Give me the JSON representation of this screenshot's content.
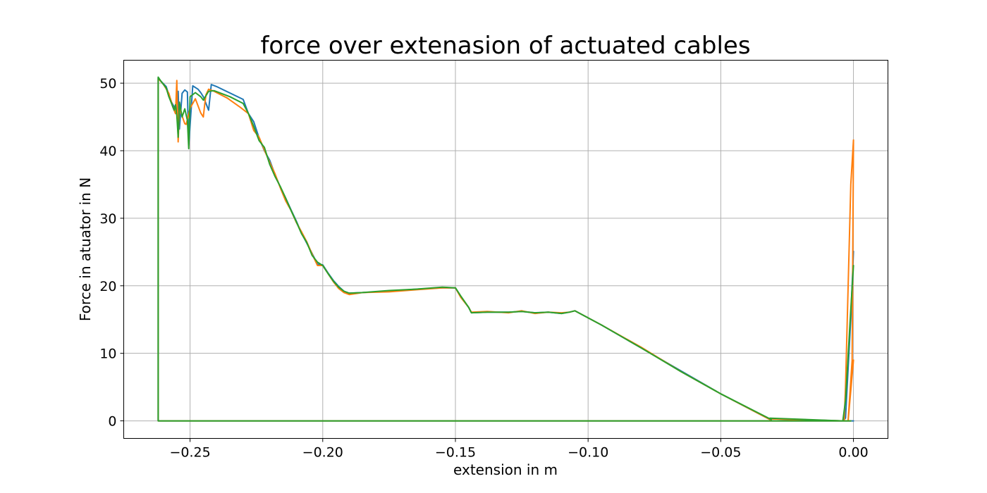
{
  "chart_data": {
    "type": "line",
    "title": "force over extenasion of actuated cables",
    "xlabel": "extension in m",
    "ylabel": "Force in atuator in N",
    "xlim": [
      -0.275,
      0.013
    ],
    "ylim": [
      -2.6,
      53.4
    ],
    "grid": true,
    "xticks": [
      -0.25,
      -0.2,
      -0.15,
      -0.1,
      -0.05,
      0.0
    ],
    "xtick_labels": [
      "−0.25",
      "−0.20",
      "−0.15",
      "−0.10",
      "−0.05",
      "0.00"
    ],
    "yticks": [
      0,
      10,
      20,
      30,
      40,
      50
    ],
    "ytick_labels": [
      "0",
      "10",
      "20",
      "30",
      "40",
      "50"
    ],
    "series": [
      {
        "color": "#1f77b4",
        "x": [
          0.0,
          -0.262,
          -0.262,
          -0.261,
          -0.259,
          -0.258,
          -0.257,
          -0.256,
          -0.255,
          -0.2545,
          -0.254,
          -0.253,
          -0.252,
          -0.251,
          -0.2505,
          -0.249,
          -0.247,
          -0.246,
          -0.245,
          -0.243,
          -0.242,
          -0.24,
          -0.23,
          -0.228,
          -0.226,
          -0.224,
          -0.222,
          -0.22,
          -0.218,
          -0.216,
          -0.214,
          -0.212,
          -0.21,
          -0.208,
          -0.206,
          -0.204,
          -0.202,
          -0.2,
          -0.198,
          -0.196,
          -0.194,
          -0.192,
          -0.19,
          -0.185,
          -0.175,
          -0.165,
          -0.155,
          -0.15,
          -0.148,
          -0.145,
          -0.144,
          -0.138,
          -0.13,
          -0.125,
          -0.12,
          -0.115,
          -0.11,
          -0.107,
          -0.105,
          -0.095,
          -0.08,
          -0.065,
          -0.05,
          -0.031,
          -0.0315,
          -0.004,
          -0.003,
          -0.001,
          0.0
        ],
        "y": [
          0,
          0,
          50.8,
          50.3,
          49.5,
          48.3,
          47.2,
          46.5,
          45.8,
          48.8,
          43.2,
          48.5,
          49.0,
          48.7,
          40.8,
          49.6,
          49.1,
          48.6,
          48.0,
          46.0,
          49.8,
          49.5,
          47.6,
          45.5,
          44.3,
          41.9,
          40.0,
          38.6,
          36.5,
          34.6,
          33.0,
          31.3,
          29.6,
          27.8,
          26.3,
          24.8,
          23.2,
          23.1,
          21.9,
          20.8,
          19.9,
          19.2,
          18.9,
          19.0,
          19.2,
          19.5,
          19.7,
          19.7,
          18.4,
          16.8,
          16.0,
          16.1,
          16.1,
          16.2,
          16.0,
          16.1,
          15.9,
          16.1,
          16.3,
          14.2,
          10.8,
          7.4,
          4.0,
          0.1,
          0.3,
          0.0,
          0.4,
          15.2,
          25.1
        ]
      },
      {
        "color": "#ff7f0e",
        "x": [
          -0.001,
          -0.262,
          -0.262,
          -0.26,
          -0.258,
          -0.2565,
          -0.2555,
          -0.255,
          -0.2545,
          -0.254,
          -0.252,
          -0.2515,
          -0.251,
          -0.25,
          -0.248,
          -0.246,
          -0.245,
          -0.2445,
          -0.244,
          -0.243,
          -0.241,
          -0.236,
          -0.231,
          -0.228,
          -0.226,
          -0.224,
          -0.222,
          -0.22,
          -0.218,
          -0.216,
          -0.214,
          -0.212,
          -0.21,
          -0.208,
          -0.206,
          -0.204,
          -0.202,
          -0.2,
          -0.198,
          -0.196,
          -0.194,
          -0.192,
          -0.19,
          -0.185,
          -0.175,
          -0.165,
          -0.155,
          -0.15,
          -0.148,
          -0.145,
          -0.144,
          -0.138,
          -0.13,
          -0.125,
          -0.12,
          -0.115,
          -0.11,
          -0.107,
          -0.105,
          -0.095,
          -0.08,
          -0.065,
          -0.05,
          -0.031,
          -0.0315,
          -0.0035,
          -0.003,
          -0.001,
          0.0,
          -0.0005,
          -0.002,
          0.0
        ],
        "y": [
          0,
          0,
          50.7,
          49.8,
          48.5,
          46.5,
          45.5,
          50.4,
          41.3,
          46.3,
          44.0,
          43.9,
          44.6,
          46.3,
          47.7,
          45.6,
          45.0,
          46.8,
          48.3,
          49.1,
          48.8,
          47.8,
          46.4,
          45.5,
          43.0,
          42.0,
          40.1,
          38.3,
          36.6,
          34.5,
          32.6,
          31.2,
          29.4,
          28.0,
          26.5,
          24.7,
          23.0,
          23.0,
          21.8,
          20.6,
          19.6,
          19.0,
          18.7,
          19.0,
          19.1,
          19.4,
          19.7,
          19.7,
          18.3,
          16.8,
          16.1,
          16.2,
          16.0,
          16.3,
          15.9,
          16.1,
          16.0,
          16.1,
          16.3,
          14.2,
          10.9,
          7.3,
          4.0,
          0.1,
          0.3,
          0.0,
          5.0,
          35.0,
          41.6,
          9.0,
          0.0,
          9.0
        ]
      },
      {
        "color": "#2ca02c",
        "x": [
          -0.001,
          -0.262,
          -0.262,
          -0.261,
          -0.259,
          -0.258,
          -0.257,
          -0.2565,
          -0.256,
          -0.2555,
          -0.255,
          -0.2545,
          -0.254,
          -0.253,
          -0.252,
          -0.251,
          -0.2505,
          -0.25,
          -0.248,
          -0.246,
          -0.245,
          -0.243,
          -0.241,
          -0.235,
          -0.23,
          -0.228,
          -0.226,
          -0.224,
          -0.222,
          -0.22,
          -0.218,
          -0.216,
          -0.214,
          -0.212,
          -0.21,
          -0.208,
          -0.206,
          -0.204,
          -0.202,
          -0.2,
          -0.198,
          -0.196,
          -0.194,
          -0.192,
          -0.19,
          -0.185,
          -0.175,
          -0.165,
          -0.155,
          -0.15,
          -0.148,
          -0.145,
          -0.144,
          -0.138,
          -0.13,
          -0.125,
          -0.12,
          -0.115,
          -0.11,
          -0.107,
          -0.105,
          -0.095,
          -0.08,
          -0.065,
          -0.05,
          -0.031,
          -0.0315,
          -0.004,
          -0.003,
          -0.001,
          0.0
        ],
        "y": [
          0,
          0,
          50.9,
          50.3,
          49.3,
          48.0,
          47.0,
          46.5,
          46.0,
          46.8,
          45.2,
          42.0,
          47.2,
          45.0,
          46.2,
          44.5,
          40.3,
          48.0,
          48.6,
          48.0,
          47.5,
          48.8,
          48.9,
          48.0,
          47.0,
          45.5,
          43.6,
          41.5,
          40.5,
          38.0,
          36.2,
          34.7,
          33.0,
          31.2,
          29.5,
          27.7,
          26.4,
          24.5,
          23.5,
          23.0,
          21.8,
          20.7,
          19.8,
          19.2,
          18.9,
          19.0,
          19.3,
          19.5,
          19.8,
          19.7,
          18.5,
          16.8,
          16.0,
          16.1,
          16.1,
          16.2,
          16.0,
          16.1,
          15.9,
          16.1,
          16.3,
          14.2,
          10.8,
          7.3,
          4.0,
          0.2,
          0.4,
          0.0,
          3.0,
          16.5,
          23.0
        ]
      }
    ]
  }
}
